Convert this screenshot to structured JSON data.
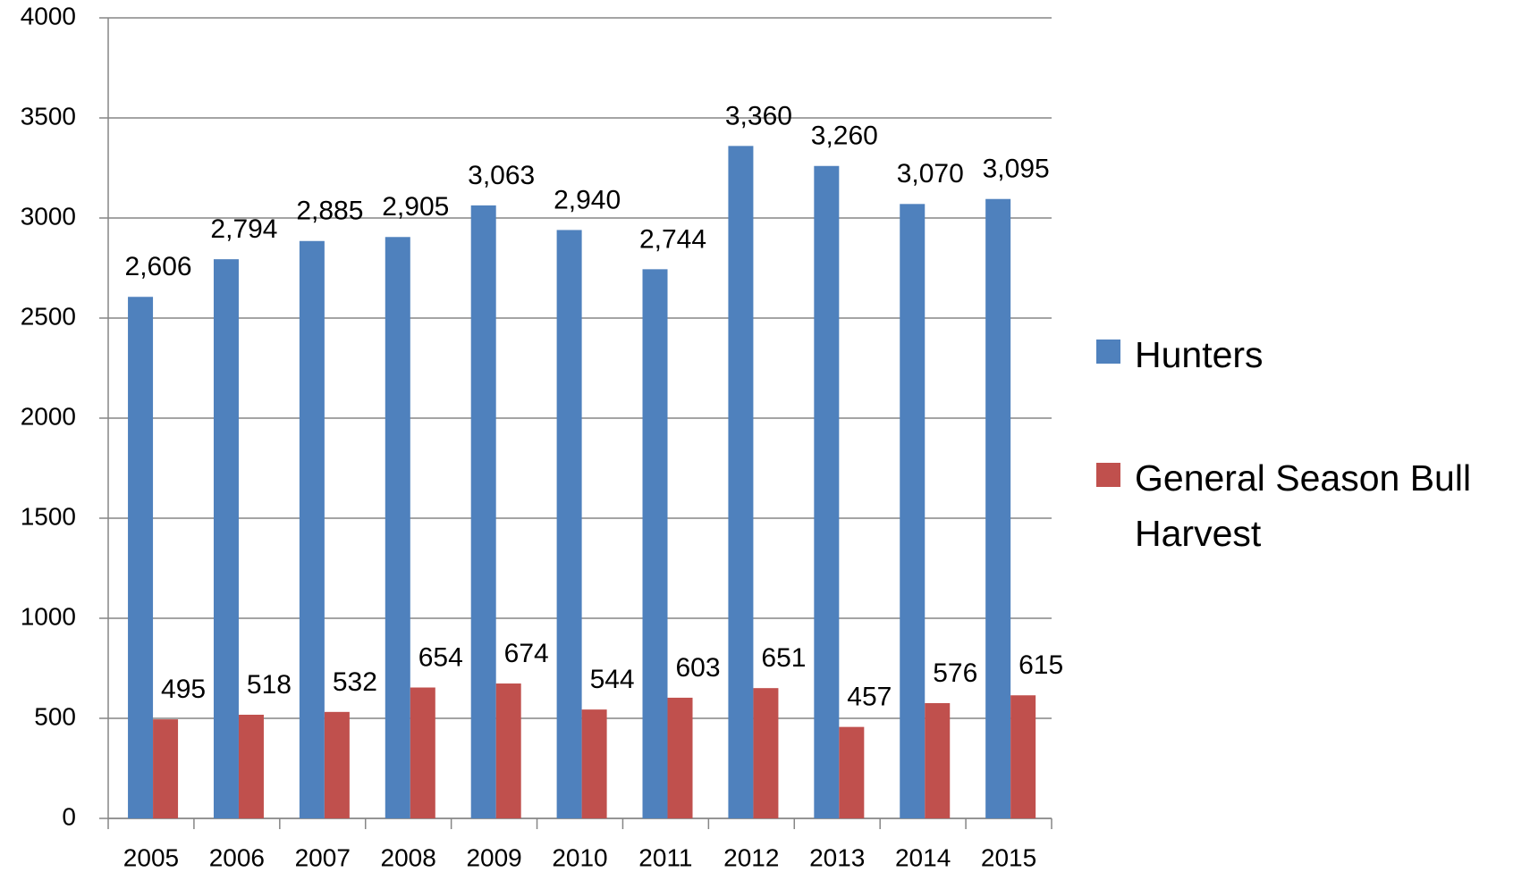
{
  "chart_data": {
    "type": "bar",
    "categories": [
      "2005",
      "2006",
      "2007",
      "2008",
      "2009",
      "2010",
      "2011",
      "2012",
      "2013",
      "2014",
      "2015"
    ],
    "series": [
      {
        "name": "Hunters",
        "color": "#4f81bd",
        "values": [
          2606,
          2794,
          2885,
          2905,
          3063,
          2940,
          2744,
          3360,
          3260,
          3070,
          3095
        ],
        "value_labels": [
          "2,606",
          "2,794",
          "2,885",
          "2,905",
          "3,063",
          "2,940",
          "2,744",
          "3,360",
          "3,260",
          "3,070",
          "3,095"
        ]
      },
      {
        "name": "General Season Bull Harvest",
        "color": "#c0504d",
        "values": [
          495,
          518,
          532,
          654,
          674,
          544,
          603,
          651,
          457,
          576,
          615
        ]
      }
    ],
    "ylim": [
      0,
      4000
    ],
    "yticks": [
      0,
      500,
      1000,
      1500,
      2000,
      2500,
      3000,
      3500,
      4000
    ],
    "grid": true,
    "legend": "right"
  }
}
